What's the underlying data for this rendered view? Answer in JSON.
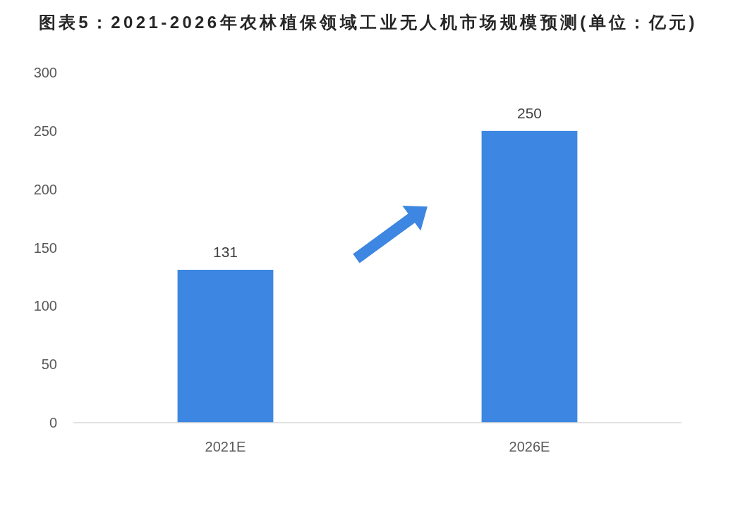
{
  "chart_data": {
    "type": "bar",
    "title": "图表5：2021-2026年农林植保领域工业无人机市场规模预测(单位：亿元)",
    "categories": [
      "2021E",
      "2026E"
    ],
    "values": [
      131,
      250
    ],
    "color": "#3d86e1",
    "ylim": [
      0,
      300
    ],
    "yticks": [
      0,
      50,
      100,
      150,
      200,
      250,
      300
    ],
    "data_labels": true
  }
}
